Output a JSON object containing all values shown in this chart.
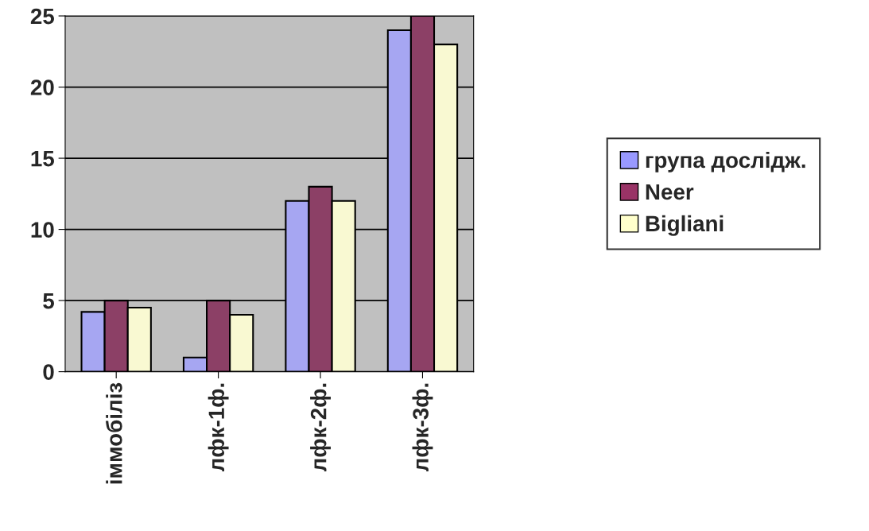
{
  "chart_data": {
    "type": "bar",
    "categories": [
      "іммобіліз",
      "лфк-1ф.",
      "лфк-2ф.",
      "лфк-3ф."
    ],
    "series": [
      {
        "name": "група дослідж.",
        "color": "#9999ff",
        "values": [
          4.2,
          1,
          12,
          24
        ]
      },
      {
        "name": "Neer",
        "color": "#993366",
        "values": [
          5,
          5,
          13,
          25
        ]
      },
      {
        "name": "Bigliani",
        "color": "#ffffcc",
        "values": [
          4.5,
          4,
          12,
          23
        ]
      }
    ],
    "ylim": [
      0,
      25
    ],
    "yticks": [
      0,
      5,
      10,
      15,
      20,
      25
    ],
    "grid": "y",
    "legend": "right"
  }
}
